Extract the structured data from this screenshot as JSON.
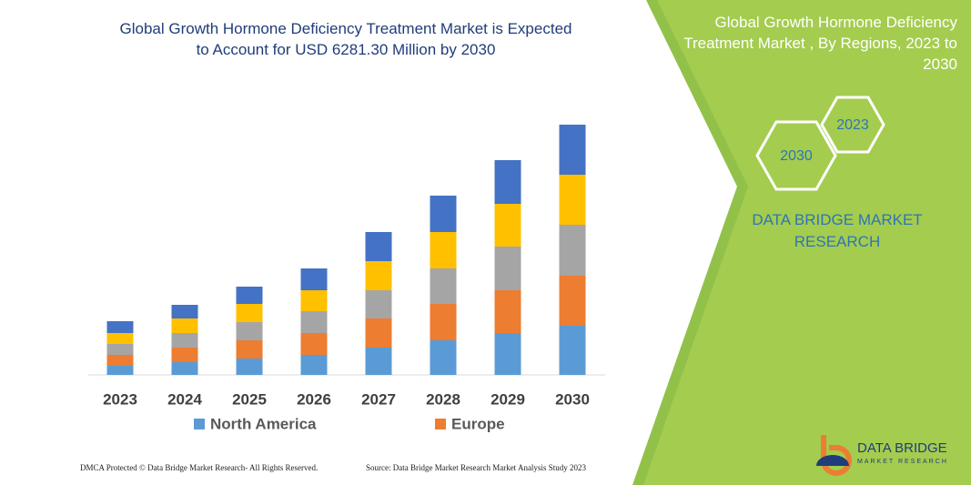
{
  "title": "Global Growth Hormone Deficiency Treatment Market is Expected to Account for USD 6281.30 Million by 2030",
  "chart_data": {
    "type": "stacked-bar",
    "categories": [
      "2023",
      "2024",
      "2025",
      "2026",
      "2027",
      "2028",
      "2029",
      "2030"
    ],
    "series": [
      {
        "name": "North America",
        "color": "#5b9bd5",
        "values": [
          10,
          14,
          18,
          22,
          30,
          38,
          46,
          54
        ]
      },
      {
        "name": "Europe",
        "color": "#ed7d31",
        "values": [
          12,
          16,
          20,
          24,
          32,
          40,
          47,
          55
        ]
      },
      {
        "color": "#a5a5a5",
        "values": [
          12,
          16,
          20,
          24,
          31,
          39,
          48,
          56
        ]
      },
      {
        "color": "#ffc000",
        "values": [
          12,
          16,
          20,
          23,
          32,
          40,
          47,
          55
        ]
      },
      {
        "color": "#4472c4",
        "values": [
          13,
          15,
          19,
          24,
          32,
          40,
          48,
          55
        ]
      }
    ],
    "ylim": [
      0,
      280
    ]
  },
  "panel": {
    "title": "Global Growth Hormone Deficiency Treatment Market , By Regions, 2023 to 2030",
    "hexagons": [
      "2023",
      "2030"
    ],
    "brand": "DATA BRIDGE MARKET RESEARCH"
  },
  "footer": {
    "left": "DMCA Protected © Data Bridge Market Research- All Rights Reserved.",
    "right": "Source: Data Bridge Market Research Market Analysis Study 2023"
  },
  "logo": {
    "name": "DATA BRIDGE",
    "tagline": "MARKET RESEARCH"
  }
}
